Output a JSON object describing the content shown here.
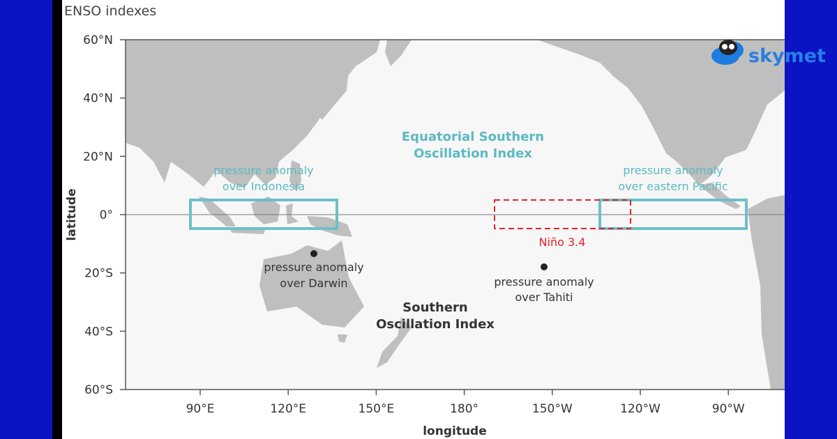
{
  "title": "ENSO indexes",
  "y_axis_label": "latitude",
  "x_axis_label": "longitude",
  "lat_ticks": [
    "60°N",
    "40°N",
    "20°N",
    "0°",
    "20°S",
    "40°S",
    "60°S"
  ],
  "lon_ticks": [
    "90°E",
    "120°E",
    "150°E",
    "180°",
    "150°W",
    "120°W",
    "90°W"
  ],
  "annotations": {
    "equatorial_soi": [
      "Equatorial Southern",
      "Oscillation Index"
    ],
    "indonesia": [
      "pressure anomaly",
      "over Indonesia"
    ],
    "eastern_pacific": [
      "pressure anomaly",
      "over eastern Pacific"
    ],
    "nino34": "Niño 3.4",
    "darwin": [
      "pressure anomaly",
      "over Darwin"
    ],
    "tahiti": [
      "pressure anomaly",
      "over Tahiti"
    ],
    "soi": [
      "Southern",
      "Oscillation Index"
    ]
  },
  "logo": "skymet"
}
